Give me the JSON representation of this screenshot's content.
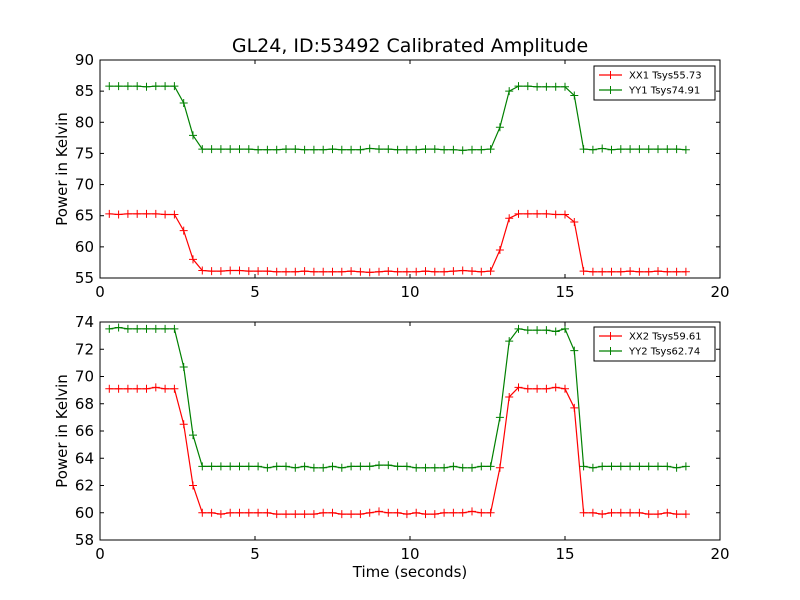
{
  "chart_data": [
    {
      "type": "line",
      "title": "GL24, ID:53492 Calibrated Amplitude",
      "xlabel": "",
      "ylabel": "Power in Kelvin",
      "xlim": [
        0,
        20
      ],
      "ylim": [
        55,
        90
      ],
      "xticks": [
        "0",
        "5",
        "10",
        "15",
        "20"
      ],
      "yticks": [
        "55",
        "60",
        "65",
        "70",
        "75",
        "80",
        "85",
        "90"
      ],
      "legend_position": "top-right",
      "x": [
        0.3,
        0.6,
        0.9,
        1.2,
        1.5,
        1.8,
        2.1,
        2.4,
        2.7,
        3.0,
        3.3,
        3.6,
        3.9,
        4.2,
        4.5,
        4.8,
        5.1,
        5.4,
        5.7,
        6.0,
        6.3,
        6.6,
        6.9,
        7.2,
        7.5,
        7.8,
        8.1,
        8.4,
        8.7,
        9.0,
        9.3,
        9.6,
        9.9,
        10.2,
        10.5,
        10.8,
        11.1,
        11.4,
        11.7,
        12.0,
        12.3,
        12.6,
        12.9,
        13.2,
        13.5,
        13.8,
        14.1,
        14.4,
        14.7,
        15.0,
        15.3,
        15.6,
        15.9,
        16.2,
        16.5,
        16.8,
        17.1,
        17.4,
        17.7,
        18.0,
        18.3,
        18.6,
        18.9
      ],
      "series": [
        {
          "name": "XX1 Tsys55.73",
          "color": "#ff0000",
          "values": [
            65.3,
            65.2,
            65.3,
            65.3,
            65.3,
            65.3,
            65.2,
            65.2,
            62.6,
            58.0,
            56.2,
            56.1,
            56.1,
            56.2,
            56.2,
            56.1,
            56.1,
            56.1,
            56.0,
            56.0,
            56.0,
            56.1,
            56.0,
            56.0,
            56.0,
            56.0,
            56.1,
            56.0,
            55.9,
            56.0,
            56.1,
            56.0,
            56.0,
            56.0,
            56.1,
            56.0,
            56.0,
            56.1,
            56.2,
            56.1,
            56.0,
            56.1,
            59.5,
            64.6,
            65.3,
            65.3,
            65.3,
            65.3,
            65.2,
            65.2,
            64.0,
            56.1,
            56.0,
            56.0,
            56.0,
            56.0,
            56.1,
            56.0,
            56.0,
            56.1,
            56.0,
            56.0,
            56.0
          ]
        },
        {
          "name": "YY1 Tsys74.91",
          "color": "#008000",
          "values": [
            85.8,
            85.8,
            85.8,
            85.8,
            85.7,
            85.8,
            85.8,
            85.8,
            83.1,
            77.9,
            75.7,
            75.7,
            75.7,
            75.7,
            75.7,
            75.7,
            75.6,
            75.6,
            75.6,
            75.7,
            75.7,
            75.6,
            75.6,
            75.6,
            75.7,
            75.6,
            75.6,
            75.6,
            75.8,
            75.7,
            75.7,
            75.6,
            75.6,
            75.6,
            75.7,
            75.7,
            75.6,
            75.6,
            75.5,
            75.6,
            75.6,
            75.7,
            79.2,
            85.0,
            85.8,
            85.8,
            85.7,
            85.7,
            85.7,
            85.7,
            84.3,
            75.7,
            75.6,
            75.8,
            75.6,
            75.7,
            75.7,
            75.7,
            75.7,
            75.7,
            75.7,
            75.7,
            75.6
          ]
        }
      ]
    },
    {
      "type": "line",
      "title": "",
      "xlabel": "Time (seconds)",
      "ylabel": "Power in Kelvin",
      "xlim": [
        0,
        20
      ],
      "ylim": [
        58,
        74
      ],
      "xticks": [
        "0",
        "5",
        "10",
        "15",
        "20"
      ],
      "yticks": [
        "58",
        "60",
        "62",
        "64",
        "66",
        "68",
        "70",
        "72",
        "74"
      ],
      "legend_position": "top-right",
      "x": [
        0.3,
        0.6,
        0.9,
        1.2,
        1.5,
        1.8,
        2.1,
        2.4,
        2.7,
        3.0,
        3.3,
        3.6,
        3.9,
        4.2,
        4.5,
        4.8,
        5.1,
        5.4,
        5.7,
        6.0,
        6.3,
        6.6,
        6.9,
        7.2,
        7.5,
        7.8,
        8.1,
        8.4,
        8.7,
        9.0,
        9.3,
        9.6,
        9.9,
        10.2,
        10.5,
        10.8,
        11.1,
        11.4,
        11.7,
        12.0,
        12.3,
        12.6,
        12.9,
        13.2,
        13.5,
        13.8,
        14.1,
        14.4,
        14.7,
        15.0,
        15.3,
        15.6,
        15.9,
        16.2,
        16.5,
        16.8,
        17.1,
        17.4,
        17.7,
        18.0,
        18.3,
        18.6,
        18.9
      ],
      "series": [
        {
          "name": "XX2 Tsys59.61",
          "color": "#ff0000",
          "values": [
            69.1,
            69.1,
            69.1,
            69.1,
            69.1,
            69.2,
            69.1,
            69.1,
            66.5,
            62.0,
            60.0,
            60.0,
            59.9,
            60.0,
            60.0,
            60.0,
            60.0,
            60.0,
            59.9,
            59.9,
            59.9,
            59.9,
            59.9,
            60.0,
            60.0,
            59.9,
            59.9,
            59.9,
            60.0,
            60.1,
            60.0,
            60.0,
            59.9,
            60.0,
            59.9,
            59.9,
            60.0,
            60.0,
            60.0,
            60.1,
            60.0,
            60.0,
            63.3,
            68.5,
            69.2,
            69.1,
            69.1,
            69.1,
            69.2,
            69.1,
            67.7,
            60.0,
            60.0,
            59.9,
            60.0,
            60.0,
            60.0,
            60.0,
            59.9,
            59.9,
            60.0,
            59.9,
            59.9
          ]
        },
        {
          "name": "YY2 Tsys62.74",
          "color": "#008000",
          "values": [
            73.5,
            73.6,
            73.5,
            73.5,
            73.5,
            73.5,
            73.5,
            73.5,
            70.7,
            65.7,
            63.4,
            63.4,
            63.4,
            63.4,
            63.4,
            63.4,
            63.4,
            63.3,
            63.4,
            63.4,
            63.3,
            63.4,
            63.3,
            63.3,
            63.4,
            63.3,
            63.4,
            63.4,
            63.4,
            63.5,
            63.5,
            63.4,
            63.4,
            63.3,
            63.3,
            63.3,
            63.3,
            63.4,
            63.3,
            63.3,
            63.4,
            63.4,
            67.0,
            72.6,
            73.5,
            73.4,
            73.4,
            73.4,
            73.3,
            73.5,
            71.9,
            63.4,
            63.3,
            63.4,
            63.4,
            63.4,
            63.4,
            63.4,
            63.4,
            63.4,
            63.4,
            63.3,
            63.4
          ]
        }
      ]
    }
  ]
}
